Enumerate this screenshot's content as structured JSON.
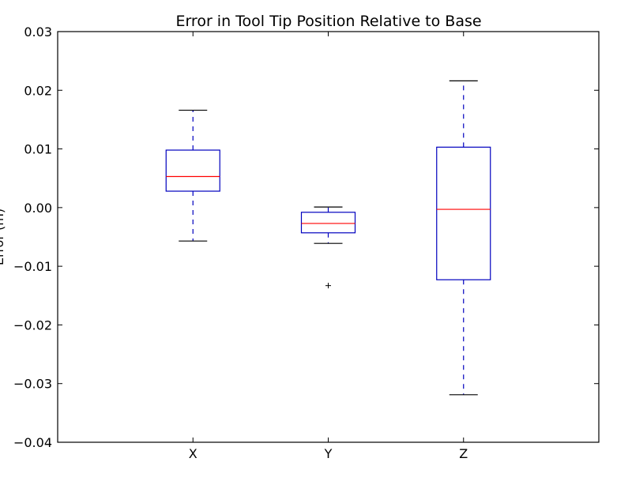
{
  "chart_data": {
    "type": "box",
    "title": "Error in Tool Tip Position Relative to Base",
    "xlabel": "",
    "ylabel": "Error (m)",
    "ylim": [
      -0.04,
      0.03
    ],
    "yticks": [
      0.03,
      0.02,
      0.01,
      0.0,
      -0.01,
      -0.02,
      -0.03,
      -0.04
    ],
    "ytick_labels": [
      "0.03",
      "0.02",
      "0.01",
      "0.00",
      "−0.01",
      "−0.02",
      "−0.03",
      "−0.04"
    ],
    "categories": [
      "X",
      "Y",
      "Z"
    ],
    "boxes": [
      {
        "label": "X",
        "whisker_low": -0.0057,
        "q1": 0.0028,
        "median": 0.0053,
        "q3": 0.0098,
        "whisker_high": 0.0166,
        "outliers": []
      },
      {
        "label": "Y",
        "whisker_low": -0.0061,
        "q1": -0.0043,
        "median": -0.0027,
        "q3": -0.0008,
        "whisker_high": 0.0001,
        "outliers": [
          -0.0133
        ]
      },
      {
        "label": "Z",
        "whisker_low": -0.0319,
        "q1": -0.0123,
        "median": -0.0003,
        "q3": 0.0103,
        "whisker_high": 0.0216,
        "outliers": []
      }
    ],
    "colors": {
      "box": "#0000bf",
      "whisker": "#0000bf",
      "cap": "#000000",
      "median": "#ff0000",
      "outlier": "#000000",
      "axes": "#000000"
    },
    "grid": false,
    "legend": "none"
  }
}
